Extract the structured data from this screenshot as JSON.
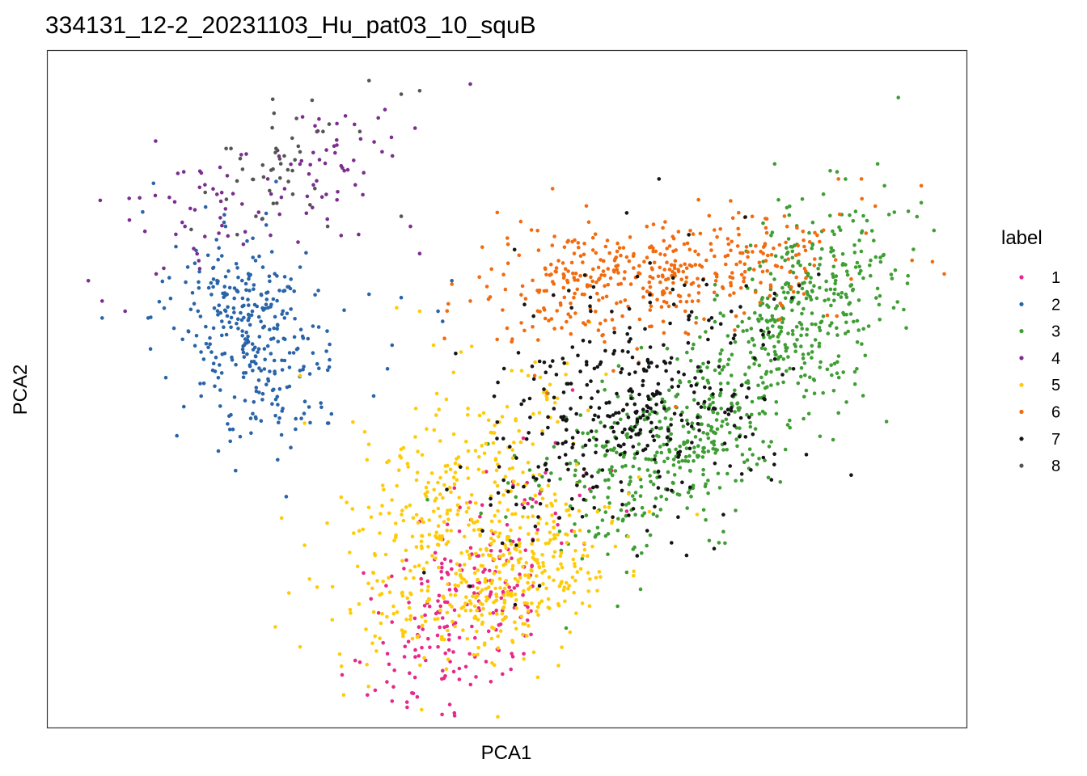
{
  "chart_data": {
    "type": "scatter",
    "title": "334131_12-2_20231103_Hu_pat03_10_squB",
    "xlabel": "PCA1",
    "ylabel": "PCA2",
    "xlim": [
      0,
      100
    ],
    "ylim": [
      0,
      100
    ],
    "axis_ticks": false,
    "grid": false,
    "legend": {
      "title": "label",
      "placement": "right",
      "entries": [
        "1",
        "2",
        "3",
        "4",
        "5",
        "6",
        "7",
        "8"
      ]
    },
    "series": [
      {
        "name": "1",
        "color": "#E7298A",
        "n_points": 220,
        "clusters": [
          {
            "cx": 46,
            "cy": 19,
            "sx": 5,
            "sy": 9,
            "rho": 0.6
          }
        ],
        "points": [
          [
            37.5,
            4
          ],
          [
            40,
            7.5
          ],
          [
            43,
            8.5
          ],
          [
            37,
            11
          ],
          [
            33.5,
            10
          ],
          [
            42.5,
            12
          ],
          [
            49.5,
            8
          ],
          [
            50.5,
            11
          ],
          [
            63,
            32
          ],
          [
            55.5,
            30
          ],
          [
            50,
            30
          ],
          [
            40.5,
            30.5
          ]
        ]
      },
      {
        "name": "2",
        "color": "#2A64A8",
        "n_points": 330,
        "clusters": [
          {
            "cx": 22,
            "cy": 59,
            "sx": 4.2,
            "sy": 7.5,
            "rho": -0.3
          }
        ],
        "points": [
          [
            6,
            60.5
          ],
          [
            11,
            60.5
          ],
          [
            20.5,
            38
          ],
          [
            21,
            43
          ],
          [
            30.5,
            45
          ],
          [
            35.5,
            49
          ],
          [
            37,
            53
          ],
          [
            35,
            64
          ],
          [
            37.5,
            56.5
          ],
          [
            38.5,
            63.5
          ],
          [
            43,
            60
          ],
          [
            44,
            66
          ],
          [
            42.5,
            61.5
          ]
        ]
      },
      {
        "name": "3",
        "color": "#3F9E34",
        "n_points": 780,
        "clusters": [
          {
            "cx": 67,
            "cy": 41,
            "sx": 7.5,
            "sy": 7,
            "rho": 0.5
          },
          {
            "cx": 82,
            "cy": 62,
            "sx": 5.5,
            "sy": 8,
            "rho": 0.4
          }
        ],
        "points": [
          [
            92.5,
            93
          ],
          [
            91,
            80
          ],
          [
            89.5,
            69
          ],
          [
            95,
            77.5
          ],
          [
            92,
            62
          ],
          [
            86.5,
            68.5
          ],
          [
            88,
            53
          ],
          [
            86,
            46.5
          ],
          [
            78,
            39.5
          ],
          [
            73.5,
            29
          ],
          [
            63,
            23
          ],
          [
            62,
            18
          ],
          [
            64.5,
            20.5
          ]
        ]
      },
      {
        "name": "4",
        "color": "#7B2E8E",
        "n_points": 95,
        "clusters": [
          {
            "cx": 17,
            "cy": 76,
            "sx": 5,
            "sy": 4,
            "rho": 0.3
          },
          {
            "cx": 31,
            "cy": 83,
            "sx": 3,
            "sy": 5,
            "rho": 0.3
          }
        ],
        "points": [
          [
            4.5,
            66
          ],
          [
            6,
            63
          ],
          [
            8.5,
            61.5
          ],
          [
            15,
            74
          ],
          [
            19,
            79
          ],
          [
            24,
            81
          ],
          [
            31.5,
            86
          ],
          [
            36,
            90
          ],
          [
            46,
            95
          ],
          [
            40,
            88.5
          ],
          [
            39.5,
            74
          ],
          [
            40.5,
            70
          ]
        ]
      },
      {
        "name": "5",
        "color": "#FFCB08",
        "n_points": 640,
        "clusters": [
          {
            "cx": 44,
            "cy": 33,
            "sx": 6.5,
            "sy": 11,
            "rho": 0.55
          },
          {
            "cx": 51,
            "cy": 22,
            "sx": 5.5,
            "sy": 6,
            "rho": 0.4
          }
        ],
        "points": [
          [
            27.5,
            52
          ],
          [
            28,
            45
          ],
          [
            25.5,
            31
          ],
          [
            28,
            27
          ],
          [
            27.5,
            12
          ],
          [
            31,
            16
          ],
          [
            33,
            17
          ],
          [
            38,
            62
          ],
          [
            40.5,
            61.5
          ],
          [
            42,
            56.5
          ],
          [
            59,
            22
          ]
        ]
      },
      {
        "name": "6",
        "color": "#F26B0F",
        "n_points": 420,
        "clusters": [
          {
            "cx": 58,
            "cy": 66,
            "sx": 6,
            "sy": 5,
            "rho": 0.1
          },
          {
            "cx": 73,
            "cy": 68,
            "sx": 7,
            "sy": 4.5,
            "rho": 0.2
          }
        ],
        "points": [
          [
            44,
            65.5
          ],
          [
            46,
            63
          ],
          [
            50,
            59
          ],
          [
            50.5,
            57
          ],
          [
            53,
            52
          ],
          [
            62,
            71.5
          ],
          [
            68,
            72.5
          ],
          [
            86,
            81
          ],
          [
            88.5,
            81
          ],
          [
            90,
            77
          ],
          [
            95,
            80
          ],
          [
            89,
            73
          ],
          [
            97.5,
            67
          ],
          [
            94,
            69
          ]
        ]
      },
      {
        "name": "7",
        "color": "#151515",
        "n_points": 380,
        "clusters": [
          {
            "cx": 64,
            "cy": 47,
            "sx": 8,
            "sy": 9,
            "rho": 0.35
          }
        ],
        "points": [
          [
            66.5,
            81
          ],
          [
            63,
            76
          ],
          [
            57,
            62
          ],
          [
            49,
            51
          ],
          [
            54,
            50
          ],
          [
            51,
            33
          ],
          [
            51,
            27
          ],
          [
            72.5,
            26.5
          ],
          [
            69.5,
            25.5
          ],
          [
            73.5,
            31.5
          ],
          [
            75.5,
            37.5
          ],
          [
            74,
            47
          ],
          [
            78,
            48.5
          ]
        ]
      },
      {
        "name": "8",
        "color": "#555555",
        "n_points": 40,
        "clusters": [
          {
            "cx": 25,
            "cy": 83,
            "sx": 3.5,
            "sy": 5,
            "rho": 0.4
          }
        ],
        "points": [
          [
            35,
            95.5
          ],
          [
            38.5,
            93.5
          ],
          [
            40.5,
            94
          ],
          [
            34,
            88
          ],
          [
            30,
            88
          ],
          [
            27.5,
            85
          ],
          [
            21,
            84
          ],
          [
            19.5,
            78
          ],
          [
            20,
            85.5
          ],
          [
            38.5,
            75.5
          ],
          [
            30.5,
            74
          ]
        ]
      }
    ]
  }
}
